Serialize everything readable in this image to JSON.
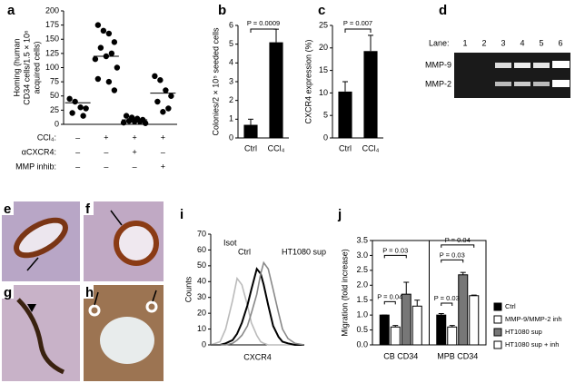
{
  "chart_data": [
    {
      "type": "dot",
      "panel": "a",
      "ylabel": [
        "Homing (human",
        "CD34 cells/1.5 × 10⁶",
        "acquired cells)"
      ],
      "ylim": [
        0,
        200
      ],
      "yticks": [
        0,
        25,
        50,
        75,
        100,
        125,
        150,
        175,
        200
      ],
      "groups": [
        {
          "values": [
            45,
            40,
            30,
            28,
            20,
            15
          ],
          "mean": 38
        },
        {
          "values": [
            175,
            165,
            160,
            145,
            135,
            125,
            120,
            115,
            100,
            80,
            75,
            60
          ],
          "mean": 120
        },
        {
          "values": [
            15,
            12,
            10,
            8,
            6,
            5,
            5,
            3,
            2
          ],
          "mean": 8
        },
        {
          "values": [
            85,
            78,
            60,
            50,
            40,
            28,
            22
          ],
          "mean": 55
        }
      ],
      "conditions": {
        "labels": [
          "CCl₄:",
          "αCXCR4:",
          "MMP inhib:"
        ],
        "rows": [
          [
            "–",
            "+",
            "+",
            "+"
          ],
          [
            "–",
            "–",
            "+",
            "–"
          ],
          [
            "–",
            "–",
            "–",
            "+"
          ]
        ]
      }
    },
    {
      "type": "bar",
      "panel": "b",
      "ylabel": "Colonies/2 × 10⁵ seeded cells",
      "categories": [
        "Ctrl",
        "CCl₄"
      ],
      "values": [
        0.7,
        5.1
      ],
      "errors": [
        0.3,
        0.7
      ],
      "color": "#000000",
      "ylim": [
        0,
        6
      ],
      "yticks": [
        0,
        1,
        2,
        3,
        4,
        5,
        6
      ],
      "annotation": "P = 0.0009"
    },
    {
      "type": "bar",
      "panel": "c",
      "ylabel": "CXCR4 expression (%)",
      "categories": [
        "Ctrl",
        "CCl₄"
      ],
      "values": [
        10.3,
        19.3
      ],
      "errors": [
        2.2,
        3.5
      ],
      "color": "#000000",
      "ylim": [
        0,
        25
      ],
      "yticks": [
        0,
        5,
        10,
        15,
        20,
        25
      ],
      "annotation": "P = 0.007"
    },
    {
      "type": "histline",
      "panel": "i",
      "ylabel": "Counts",
      "xlabel": "CXCR4",
      "xscale": "log",
      "xlim": [
        1,
        1000
      ],
      "ylim": [
        0,
        70
      ],
      "yticks": [
        0,
        10,
        20,
        30,
        40,
        50,
        60,
        70
      ],
      "x": [
        1,
        2,
        3,
        5,
        7,
        10,
        15,
        20,
        30,
        40,
        50,
        70,
        100,
        150,
        200,
        300,
        500,
        1000
      ],
      "series": [
        {
          "name": "Isot",
          "color": "#bbbbbb",
          "values": [
            0,
            2,
            10,
            28,
            42,
            38,
            25,
            14,
            6,
            2,
            1,
            0,
            0,
            0,
            0,
            0,
            0,
            0
          ]
        },
        {
          "name": "Ctrl",
          "color": "#000000",
          "values": [
            0,
            0,
            1,
            3,
            7,
            14,
            25,
            35,
            48,
            45,
            38,
            25,
            12,
            5,
            2,
            1,
            0,
            0
          ]
        },
        {
          "name": "HT1080 sup",
          "color": "#888888",
          "values": [
            0,
            0,
            0,
            1,
            3,
            6,
            12,
            20,
            32,
            45,
            52,
            48,
            35,
            20,
            10,
            4,
            1,
            0
          ]
        }
      ]
    },
    {
      "type": "grouped",
      "panel": "j",
      "ylabel": "Migration (fold increase)",
      "categories": [
        "CB CD34",
        "MPB CD34"
      ],
      "ylim": [
        0,
        3.5
      ],
      "yticks": [
        {
          "value": 0,
          "label": "0.0"
        },
        0.5,
        {
          "value": 1,
          "label": "1.0"
        },
        1.5,
        {
          "value": 2,
          "label": "2.0"
        },
        2.5,
        {
          "value": 3,
          "label": "3.0"
        },
        3.5
      ],
      "series": [
        {
          "name": "Ctrl",
          "color": "#000000",
          "values": [
            1.0,
            1.0
          ],
          "errors": [
            0,
            0.05
          ]
        },
        {
          "name": "MMP-9/MMP-2 inh",
          "color": "#ffffff",
          "values": [
            0.6,
            0.6
          ],
          "errors": [
            0.05,
            0.05
          ]
        },
        {
          "name": "HT1080 sup",
          "color": "#777777",
          "values": [
            1.7,
            2.35
          ],
          "errors": [
            0.4,
            0.08
          ]
        },
        {
          "name": "HT1080 sup + inh",
          "color": "#ffffff",
          "values": [
            1.3,
            1.65
          ],
          "errors": [
            0.2,
            0.02
          ]
        }
      ],
      "annotations": [
        "P = 0.03",
        "P = 0.04",
        "P = 0.04",
        "P = 0.03",
        "P = 0.03"
      ]
    }
  ],
  "gel": {
    "panel": "d",
    "lane_label": "Lane:",
    "lanes": [
      "1",
      "2",
      "3",
      "4",
      "5",
      "6"
    ],
    "bands": [
      "MMP-9",
      "MMP-2"
    ]
  },
  "micrographs": [
    {
      "panel": "e"
    },
    {
      "panel": "f"
    },
    {
      "panel": "g"
    },
    {
      "panel": "h"
    }
  ]
}
